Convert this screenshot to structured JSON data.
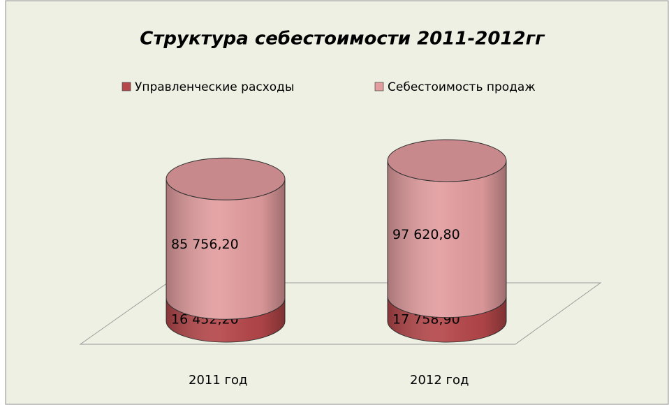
{
  "chart_data": {
    "type": "cylinder_stacked",
    "title": "Структура себестоимости 2011-2012гг",
    "categories": [
      "2011 год",
      "2012 год"
    ],
    "series": [
      {
        "name": "Управленческие расходы",
        "color": "#b5474a",
        "values": [
          16452.2,
          17758.9
        ],
        "value_labels": [
          "16 452,20",
          "17 758,90"
        ]
      },
      {
        "name": "Себестоимость продаж",
        "color": "#e39d9f",
        "values": [
          85756.2,
          97620.8
        ],
        "value_labels": [
          "85 756,20",
          "97 620,80"
        ]
      }
    ],
    "legend": "top"
  }
}
